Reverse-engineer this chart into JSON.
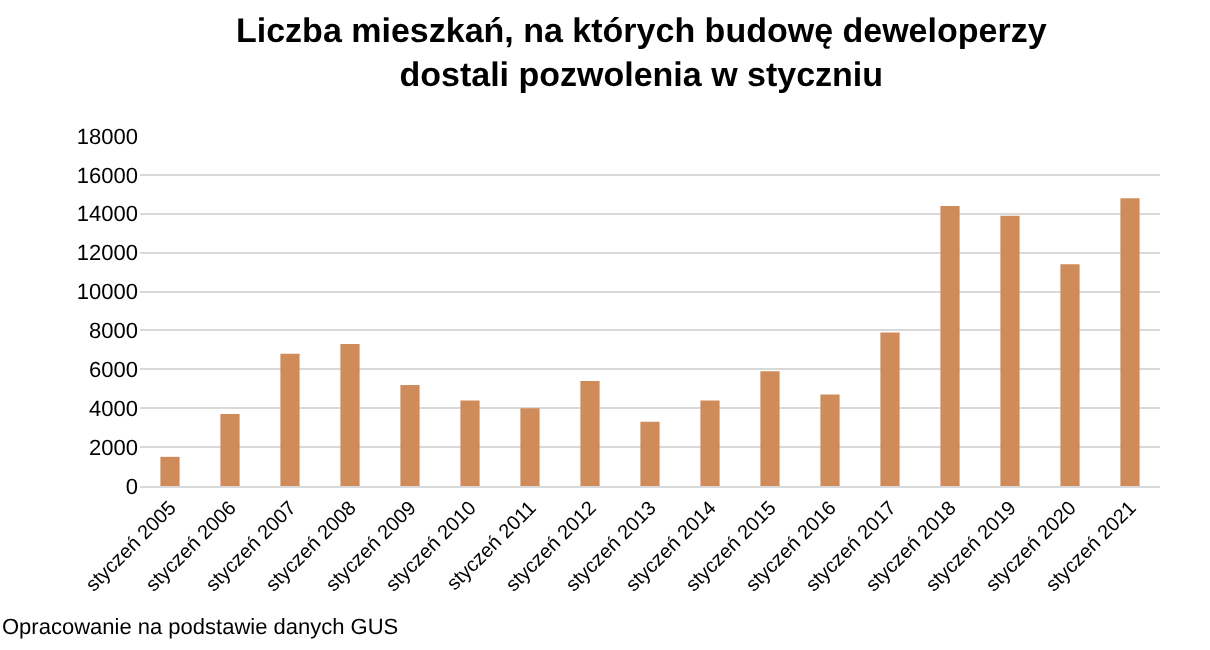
{
  "chart_data": {
    "type": "bar",
    "title": "Liczba mieszkań, na których budowę deweloperzy dostali pozwolenia w styczniu",
    "categories": [
      "styczeń 2005",
      "styczeń 2006",
      "styczeń 2007",
      "styczeń 2008",
      "styczeń 2009",
      "styczeń 2010",
      "styczeń 2011",
      "styczeń 2012",
      "styczeń 2013",
      "styczeń 2014",
      "styczeń 2015",
      "styczeń 2016",
      "styczeń 2017",
      "styczeń 2018",
      "styczeń 2019",
      "styczeń 2020",
      "styczeń 2021"
    ],
    "values": [
      1500,
      3700,
      6800,
      7300,
      5200,
      4400,
      4000,
      5400,
      3300,
      4400,
      5900,
      4700,
      7900,
      14400,
      13900,
      11400,
      14800
    ],
    "color": "#d08b5b",
    "ylim": [
      0,
      18000
    ],
    "yticks": [
      0,
      2000,
      4000,
      6000,
      8000,
      10000,
      12000,
      14000,
      16000,
      18000
    ],
    "grid": "y",
    "annotations": [
      "Opracowanie na podstawie danych GUS"
    ]
  }
}
